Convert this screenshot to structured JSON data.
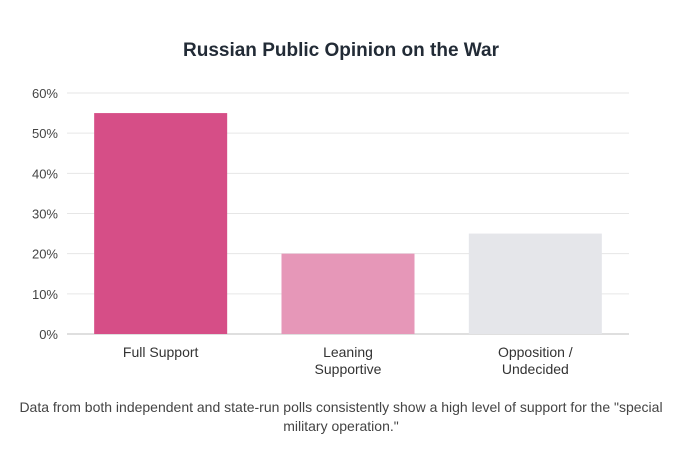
{
  "chart_data": {
    "type": "bar",
    "title": "Russian Public Opinion on the War",
    "categories": [
      "Full Support",
      "Leaning Supportive",
      "Opposition / Undecided"
    ],
    "category_lines": [
      [
        "Full Support"
      ],
      [
        "Leaning",
        "Supportive"
      ],
      [
        "Opposition /",
        "Undecided"
      ]
    ],
    "values": [
      55,
      20,
      25
    ],
    "colors": [
      "#d64e87",
      "#e697b8",
      "#e5e6ea"
    ],
    "ylim": [
      0,
      60
    ],
    "yticks": [
      0,
      10,
      20,
      30,
      40,
      50,
      60
    ],
    "ytick_labels": [
      "0%",
      "10%",
      "20%",
      "30%",
      "40%",
      "50%",
      "60%"
    ],
    "xlabel": "",
    "ylabel": "",
    "grid": true,
    "legend": "none"
  },
  "caption": "Data from both independent and state-run polls consistently show a high level of support for the \"special military operation.\""
}
